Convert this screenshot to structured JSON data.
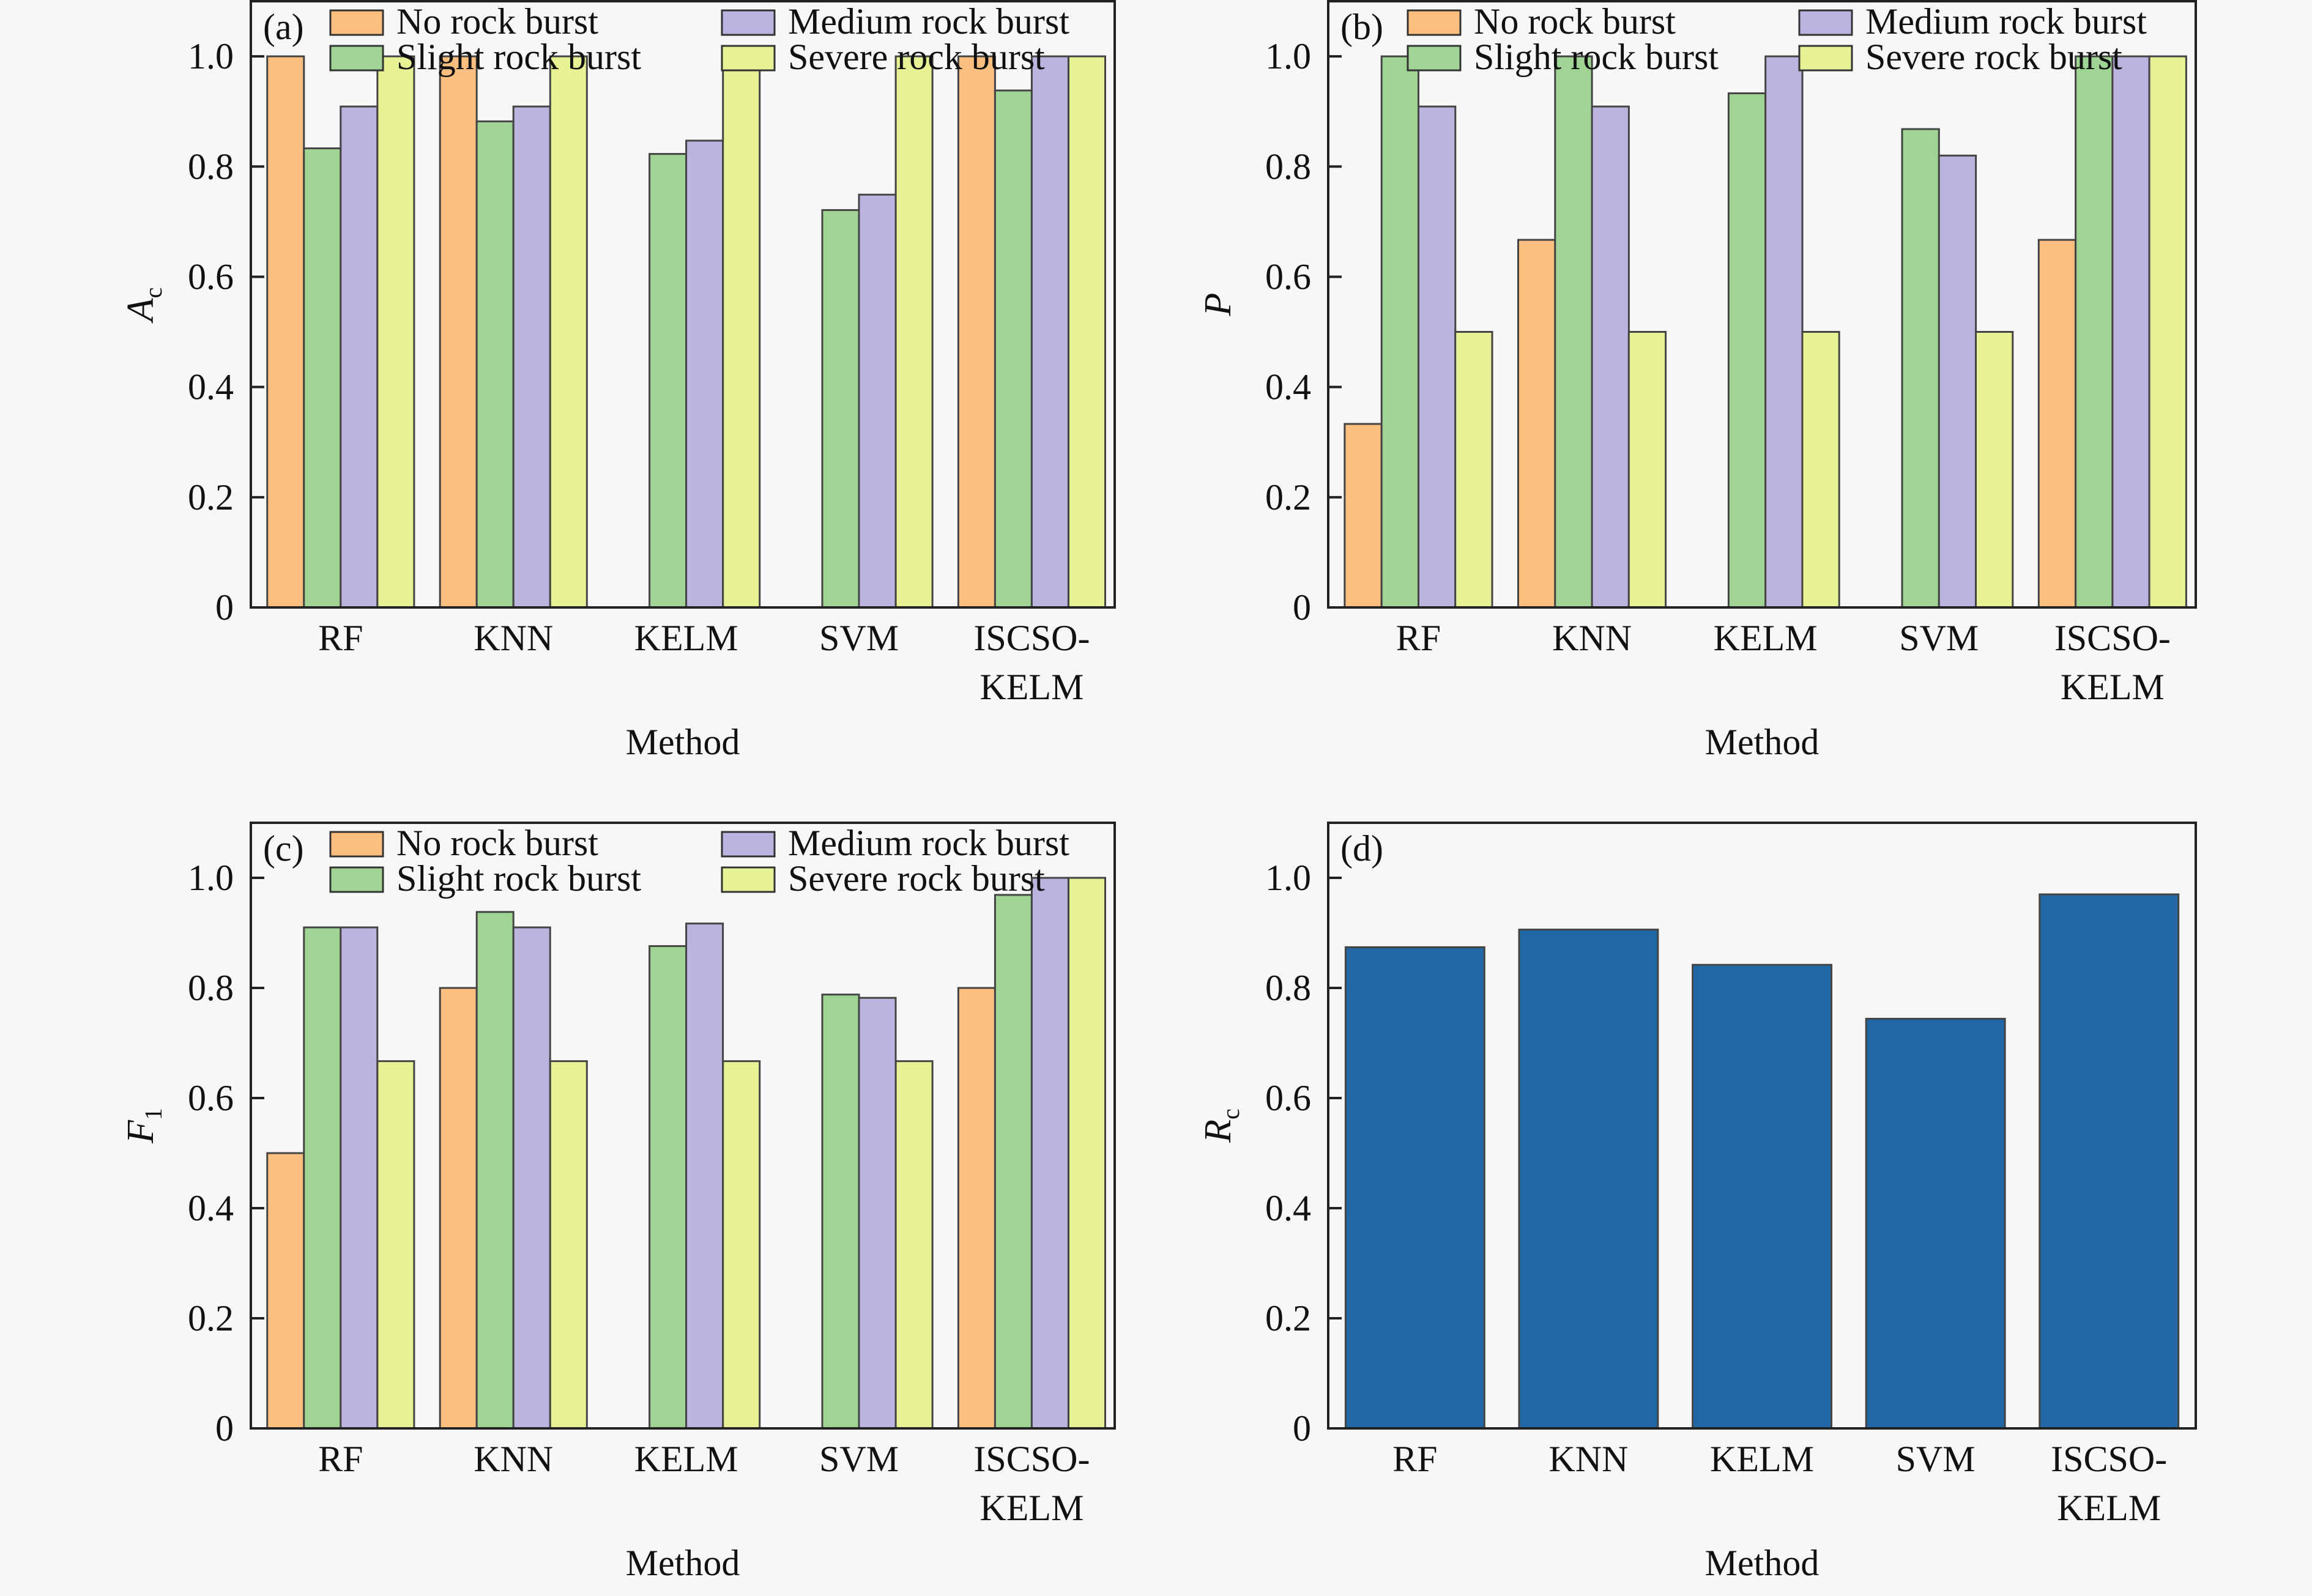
{
  "figure": {
    "panel_tags": [
      "(a)",
      "(b)",
      "(c)",
      "(d)"
    ]
  },
  "legend": [
    {
      "label": "No rock burst",
      "color": "#FDBF80"
    },
    {
      "label": "Slight rock burst",
      "color": "#A0D495"
    },
    {
      "label": "Medium rock burst",
      "color": "#BCB4DF"
    },
    {
      "label": "Severe rock burst",
      "color": "#E6F294"
    }
  ],
  "chart_data": [
    {
      "panel": "(a)",
      "type": "bar",
      "title": "",
      "xlabel": "Method",
      "ylabel": "A",
      "ylabel_sub": "c",
      "categories": [
        "RF",
        "KNN",
        "KELM",
        "SVM",
        "ISCSO-KELM"
      ],
      "category_lines": [
        [
          "RF"
        ],
        [
          "KNN"
        ],
        [
          "KELM"
        ],
        [
          "SVM"
        ],
        [
          "ISCSO-",
          "KELM"
        ]
      ],
      "ylim": [
        0,
        1.1
      ],
      "yticks": [
        0,
        0.2,
        0.4,
        0.6,
        0.8,
        1.0
      ],
      "ytick_labels": [
        "0",
        "0.2",
        "0.4",
        "0.6",
        "0.8",
        "1.0"
      ],
      "grid": false,
      "legend_position": "top",
      "series": [
        {
          "name": "No rock burst",
          "values": [
            1.0,
            1.0,
            0,
            0,
            1.0
          ]
        },
        {
          "name": "Slight rock burst",
          "values": [
            0.833,
            0.882,
            0.823,
            0.721,
            0.938
          ]
        },
        {
          "name": "Medium rock burst",
          "values": [
            0.909,
            0.909,
            0.847,
            0.749,
            1.0
          ]
        },
        {
          "name": "Severe rock burst",
          "values": [
            1.0,
            1.0,
            1.0,
            1.0,
            1.0
          ]
        }
      ]
    },
    {
      "panel": "(b)",
      "type": "bar",
      "title": "",
      "xlabel": "Method",
      "ylabel": "P",
      "ylabel_sub": "",
      "categories": [
        "RF",
        "KNN",
        "KELM",
        "SVM",
        "ISCSO-KELM"
      ],
      "category_lines": [
        [
          "RF"
        ],
        [
          "KNN"
        ],
        [
          "KELM"
        ],
        [
          "SVM"
        ],
        [
          "ISCSO-",
          "KELM"
        ]
      ],
      "ylim": [
        0,
        1.1
      ],
      "yticks": [
        0,
        0.2,
        0.4,
        0.6,
        0.8,
        1.0
      ],
      "ytick_labels": [
        "0",
        "0.2",
        "0.4",
        "0.6",
        "0.8",
        "1.0"
      ],
      "grid": false,
      "legend_position": "top",
      "series": [
        {
          "name": "No rock burst",
          "values": [
            0.333,
            0.667,
            0,
            0,
            0.667
          ]
        },
        {
          "name": "Slight rock burst",
          "values": [
            1.0,
            1.0,
            0.933,
            0.868,
            1.0
          ]
        },
        {
          "name": "Medium rock burst",
          "values": [
            0.909,
            0.909,
            1.0,
            0.82,
            1.0
          ]
        },
        {
          "name": "Severe rock burst",
          "values": [
            0.5,
            0.5,
            0.5,
            0.5,
            1.0
          ]
        }
      ]
    },
    {
      "panel": "(c)",
      "type": "bar",
      "title": "",
      "xlabel": "Method",
      "ylabel": "F",
      "ylabel_sub": "1",
      "categories": [
        "RF",
        "KNN",
        "KELM",
        "SVM",
        "ISCSO-KELM"
      ],
      "category_lines": [
        [
          "RF"
        ],
        [
          "KNN"
        ],
        [
          "KELM"
        ],
        [
          "SVM"
        ],
        [
          "ISCSO-",
          "KELM"
        ]
      ],
      "ylim": [
        0,
        1.1
      ],
      "yticks": [
        0,
        0.2,
        0.4,
        0.6,
        0.8,
        1.0
      ],
      "ytick_labels": [
        "0",
        "0.2",
        "0.4",
        "0.6",
        "0.8",
        "1.0"
      ],
      "grid": false,
      "legend_position": "top",
      "series": [
        {
          "name": "No rock burst",
          "values": [
            0.5,
            0.8,
            0,
            0,
            0.8
          ]
        },
        {
          "name": "Slight rock burst",
          "values": [
            0.91,
            0.938,
            0.876,
            0.788,
            0.969
          ]
        },
        {
          "name": "Medium rock burst",
          "values": [
            0.91,
            0.91,
            0.917,
            0.782,
            1.0
          ]
        },
        {
          "name": "Severe rock burst",
          "values": [
            0.667,
            0.667,
            0.667,
            0.667,
            1.0
          ]
        }
      ]
    },
    {
      "panel": "(d)",
      "type": "bar",
      "title": "",
      "xlabel": "Method",
      "ylabel": "R",
      "ylabel_sub": "c",
      "categories": [
        "RF",
        "KNN",
        "KELM",
        "SVM",
        "ISCSO-KELM"
      ],
      "category_lines": [
        [
          "RF"
        ],
        [
          "KNN"
        ],
        [
          "KELM"
        ],
        [
          "SVM"
        ],
        [
          "ISCSO-",
          "KELM"
        ]
      ],
      "ylim": [
        0,
        1.1
      ],
      "yticks": [
        0,
        0.2,
        0.4,
        0.6,
        0.8,
        1.0
      ],
      "ytick_labels": [
        "0",
        "0.2",
        "0.4",
        "0.6",
        "0.8",
        "1.0"
      ],
      "grid": false,
      "legend_position": "none",
      "series": [
        {
          "name": "Rc",
          "values": [
            0.874,
            0.906,
            0.842,
            0.744,
            0.97
          ],
          "color": "#2067A4"
        }
      ]
    }
  ]
}
